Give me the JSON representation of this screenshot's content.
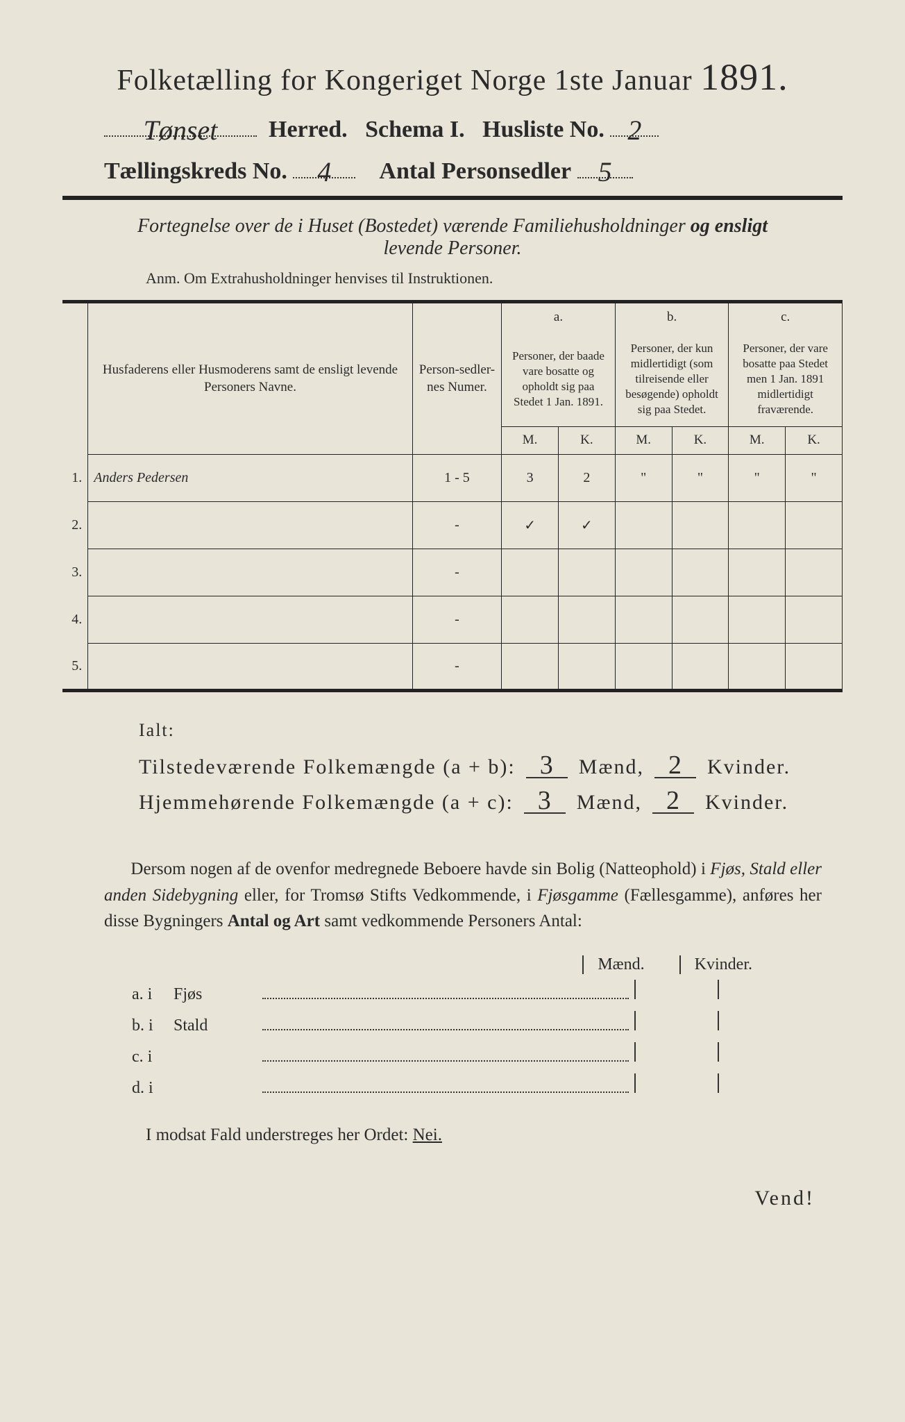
{
  "title": {
    "main": "Folketælling for Kongeriget Norge 1ste Januar",
    "year": "1891."
  },
  "header": {
    "herred_value": "Tønset",
    "herred_label": "Herred.",
    "schema_label": "Schema I.",
    "husliste_label": "Husliste No.",
    "husliste_value": "2",
    "kreds_label": "Tællingskreds No.",
    "kreds_value": "4",
    "antal_label": "Antal Personsedler",
    "antal_value": "5"
  },
  "subhead": {
    "line1a": "Fortegnelse over de i Huset (Bostedet) værende Familiehusholdninger",
    "line1b": "og ensligt",
    "line2": "levende Personer.",
    "anm": "Anm.  Om Extrahusholdninger henvises til Instruktionen."
  },
  "table": {
    "col_name": "Husfaderens eller Husmoderens samt de ensligt levende Personers Navne.",
    "col_num": "Person-sedler-nes Numer.",
    "col_a_top": "a.",
    "col_a": "Personer, der baade vare bosatte og opholdt sig paa Stedet 1 Jan. 1891.",
    "col_b_top": "b.",
    "col_b": "Personer, der kun midlertidigt (som tilreisende eller besøgende) opholdt sig paa Stedet.",
    "col_c_top": "c.",
    "col_c": "Personer, der vare bosatte paa Stedet men 1 Jan. 1891 midlertidigt fraværende.",
    "mk_m": "M.",
    "mk_k": "K.",
    "rows": [
      {
        "n": "1.",
        "name": "Anders Pedersen",
        "num": "1 - 5",
        "am": "3",
        "ak": "2",
        "bm": "\"",
        "bk": "\"",
        "cm": "\"",
        "ck": "\""
      },
      {
        "n": "2.",
        "name": "",
        "num": "-",
        "am": "✓",
        "ak": "✓",
        "bm": "",
        "bk": "",
        "cm": "",
        "ck": ""
      },
      {
        "n": "3.",
        "name": "",
        "num": "-",
        "am": "",
        "ak": "",
        "bm": "",
        "bk": "",
        "cm": "",
        "ck": ""
      },
      {
        "n": "4.",
        "name": "",
        "num": "-",
        "am": "",
        "ak": "",
        "bm": "",
        "bk": "",
        "cm": "",
        "ck": ""
      },
      {
        "n": "5.",
        "name": "",
        "num": "-",
        "am": "",
        "ak": "",
        "bm": "",
        "bk": "",
        "cm": "",
        "ck": ""
      }
    ]
  },
  "totals": {
    "ialt": "Ialt:",
    "row1_label": "Tilstedeværende Folkemængde (a + b):",
    "row2_label": "Hjemmehørende Folkemængde (a + c):",
    "maend": "Mænd,",
    "kvinder": "Kvinder.",
    "r1m": "3",
    "r1k": "2",
    "r2m": "3",
    "r2k": "2"
  },
  "paragraph": {
    "text1": "Dersom nogen af de ovenfor medregnede Beboere havde sin Bolig (Natteophold) i ",
    "ital1": "Fjøs, Stald eller anden Sidebygning",
    "text2": " eller, for Tromsø Stifts Vedkommende, i ",
    "ital2": "Fjøsgamme",
    "text3": " (Fællesgamme), anføres her disse Bygningers ",
    "bold1": "Antal og Art",
    "text4": " samt vedkommende Personers Antal:"
  },
  "bygninger": {
    "head_m": "Mænd.",
    "head_k": "Kvinder.",
    "rows": [
      {
        "lbl": "a.  i",
        "name": "Fjøs"
      },
      {
        "lbl": "b.  i",
        "name": "Stald"
      },
      {
        "lbl": "c.  i",
        "name": ""
      },
      {
        "lbl": "d.  i",
        "name": ""
      }
    ]
  },
  "footer": {
    "line": "I modsat Fald understreges her Ordet:",
    "nei": "Nei.",
    "vend": "Vend!"
  },
  "colors": {
    "paper": "#e8e5d8",
    "ink": "#2a2a2a"
  }
}
